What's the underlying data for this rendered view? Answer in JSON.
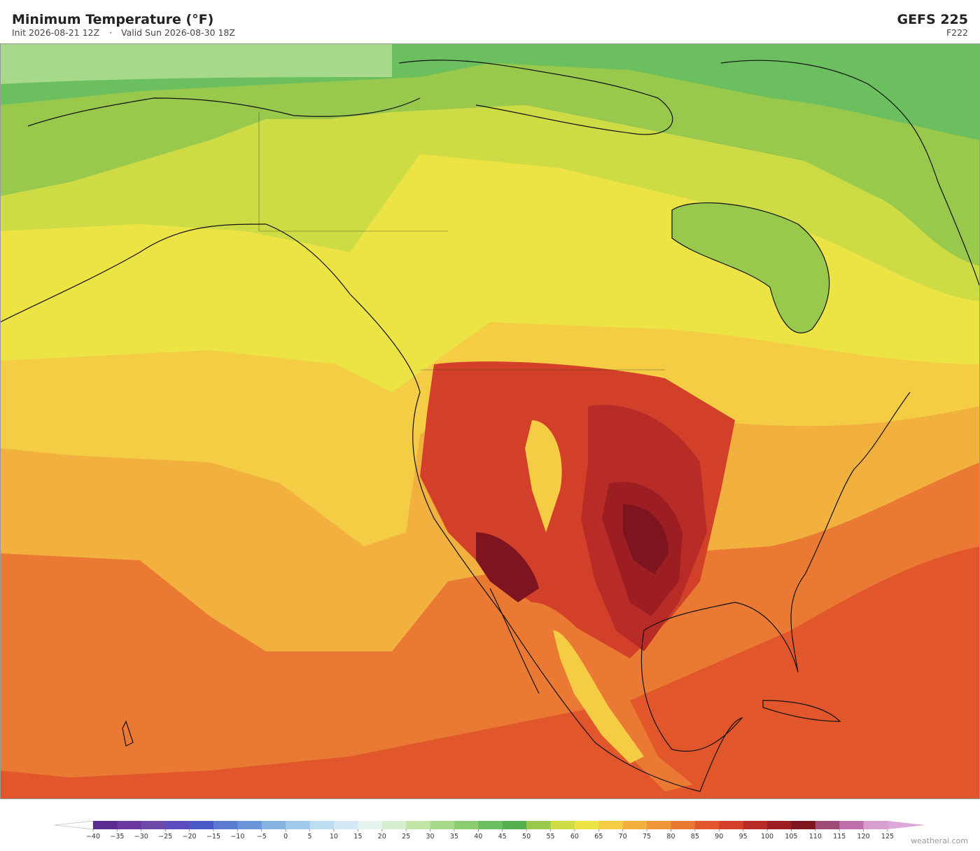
{
  "header": {
    "title": "Minimum Temperature  (°F)",
    "init": "Init 2026-08-21 12Z",
    "separator": "·",
    "valid": "Valid Sun 2026-08-30 18Z",
    "model": "GEFS  225",
    "frame": "F222"
  },
  "colorbar": {
    "ticks": [
      {
        "value": -40,
        "label": "−40"
      },
      {
        "value": -35,
        "label": "−35"
      },
      {
        "value": -30,
        "label": "−30"
      },
      {
        "value": -25,
        "label": "−25"
      },
      {
        "value": -20,
        "label": "−20"
      },
      {
        "value": -15,
        "label": "−15"
      },
      {
        "value": -10,
        "label": "−10"
      },
      {
        "value": -5,
        "label": "−5"
      },
      0,
      5,
      10,
      15,
      20,
      25,
      30,
      35,
      40,
      45,
      50,
      55,
      60,
      65,
      70,
      75,
      80,
      85,
      90,
      95,
      100,
      105,
      110,
      115,
      120,
      125
    ],
    "colors": [
      "#5b2c8f",
      "#6b3a9e",
      "#6e4aa8",
      "#5b4dbf",
      "#4a58c8",
      "#5a7bd0",
      "#6b95d8",
      "#86b3e0",
      "#9fcaea",
      "#bcdcef",
      "#d3e8f2",
      "#e6f3ee",
      "#d6eecf",
      "#c1e4a7",
      "#a6da8a",
      "#8ccd72",
      "#6cbf5e",
      "#52b04e",
      "#98c84c",
      "#cddc45",
      "#ece345",
      "#f5cd45",
      "#f2b03f",
      "#ee9638",
      "#ea7a33",
      "#e2562c",
      "#d2402a",
      "#b92b26",
      "#9c1e22",
      "#7d1420",
      "#a04a78",
      "#bf70ac",
      "#d79ed0"
    ],
    "under_color": "#ffffff",
    "over_color": "#dca8d8"
  },
  "footer": {
    "credit": "weatherai.com"
  }
}
